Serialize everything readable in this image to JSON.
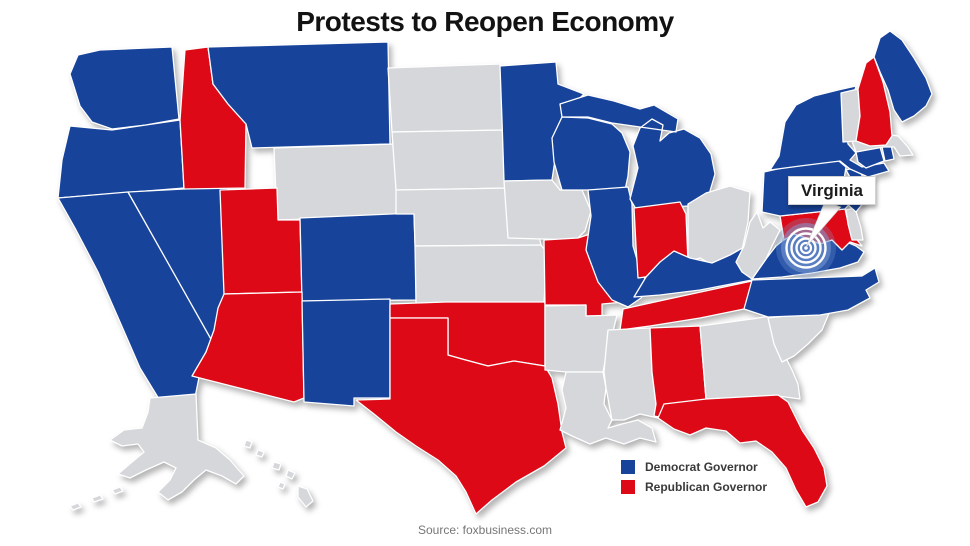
{
  "title": "Protests to Reopen Economy",
  "source": "Source: foxbusiness.com",
  "callout": {
    "label": "Virginia",
    "target_state": "VA"
  },
  "legend": {
    "items": [
      {
        "label": "Democrat Governor",
        "color": "#17439b"
      },
      {
        "label": "Republican Governor",
        "color": "#dd0916"
      }
    ]
  },
  "map": {
    "colors": {
      "democrat": "#17439b",
      "republican": "#dd0916",
      "none": "#d5d7da",
      "state_border": "#ffffff",
      "marker_halo": "#7fa0d8",
      "marker_rings": "#ffffff"
    },
    "states": [
      {
        "abbr": "WA",
        "name": "Washington",
        "governor": "democrat"
      },
      {
        "abbr": "OR",
        "name": "Oregon",
        "governor": "democrat"
      },
      {
        "abbr": "CA",
        "name": "California",
        "governor": "democrat"
      },
      {
        "abbr": "NV",
        "name": "Nevada",
        "governor": "democrat"
      },
      {
        "abbr": "ID",
        "name": "Idaho",
        "governor": "republican"
      },
      {
        "abbr": "MT",
        "name": "Montana",
        "governor": "democrat"
      },
      {
        "abbr": "WY",
        "name": "Wyoming",
        "governor": "none"
      },
      {
        "abbr": "UT",
        "name": "Utah",
        "governor": "republican"
      },
      {
        "abbr": "CO",
        "name": "Colorado",
        "governor": "democrat"
      },
      {
        "abbr": "AZ",
        "name": "Arizona",
        "governor": "republican"
      },
      {
        "abbr": "NM",
        "name": "New Mexico",
        "governor": "democrat"
      },
      {
        "abbr": "ND",
        "name": "North Dakota",
        "governor": "none"
      },
      {
        "abbr": "SD",
        "name": "South Dakota",
        "governor": "none"
      },
      {
        "abbr": "NE",
        "name": "Nebraska",
        "governor": "none"
      },
      {
        "abbr": "KS",
        "name": "Kansas",
        "governor": "none"
      },
      {
        "abbr": "OK",
        "name": "Oklahoma",
        "governor": "republican"
      },
      {
        "abbr": "TX",
        "name": "Texas",
        "governor": "republican"
      },
      {
        "abbr": "MN",
        "name": "Minnesota",
        "governor": "democrat"
      },
      {
        "abbr": "IA",
        "name": "Iowa",
        "governor": "none"
      },
      {
        "abbr": "MO",
        "name": "Missouri",
        "governor": "republican"
      },
      {
        "abbr": "AR",
        "name": "Arkansas",
        "governor": "none"
      },
      {
        "abbr": "LA",
        "name": "Louisiana",
        "governor": "none"
      },
      {
        "abbr": "WI",
        "name": "Wisconsin",
        "governor": "democrat"
      },
      {
        "abbr": "IL",
        "name": "Illinois",
        "governor": "democrat"
      },
      {
        "abbr": "MI",
        "name": "Michigan",
        "governor": "democrat"
      },
      {
        "abbr": "IN",
        "name": "Indiana",
        "governor": "republican"
      },
      {
        "abbr": "OH",
        "name": "Ohio",
        "governor": "none"
      },
      {
        "abbr": "KY",
        "name": "Kentucky",
        "governor": "democrat"
      },
      {
        "abbr": "TN",
        "name": "Tennessee",
        "governor": "republican"
      },
      {
        "abbr": "MS",
        "name": "Mississippi",
        "governor": "none"
      },
      {
        "abbr": "AL",
        "name": "Alabama",
        "governor": "republican"
      },
      {
        "abbr": "GA",
        "name": "Georgia",
        "governor": "none"
      },
      {
        "abbr": "FL",
        "name": "Florida",
        "governor": "republican"
      },
      {
        "abbr": "SC",
        "name": "South Carolina",
        "governor": "none"
      },
      {
        "abbr": "NC",
        "name": "North Carolina",
        "governor": "democrat"
      },
      {
        "abbr": "VA",
        "name": "Virginia",
        "governor": "democrat"
      },
      {
        "abbr": "WV",
        "name": "West Virginia",
        "governor": "none"
      },
      {
        "abbr": "MD",
        "name": "Maryland",
        "governor": "republican"
      },
      {
        "abbr": "DE",
        "name": "Delaware",
        "governor": "none"
      },
      {
        "abbr": "NJ",
        "name": "New Jersey",
        "governor": "democrat"
      },
      {
        "abbr": "PA",
        "name": "Pennsylvania",
        "governor": "democrat"
      },
      {
        "abbr": "NY",
        "name": "New York",
        "governor": "democrat"
      },
      {
        "abbr": "CT",
        "name": "Connecticut",
        "governor": "democrat"
      },
      {
        "abbr": "RI",
        "name": "Rhode Island",
        "governor": "democrat"
      },
      {
        "abbr": "MA",
        "name": "Massachusetts",
        "governor": "none"
      },
      {
        "abbr": "VT",
        "name": "Vermont",
        "governor": "none"
      },
      {
        "abbr": "NH",
        "name": "New Hampshire",
        "governor": "republican"
      },
      {
        "abbr": "ME",
        "name": "Maine",
        "governor": "democrat"
      },
      {
        "abbr": "AK",
        "name": "Alaska",
        "governor": "none"
      },
      {
        "abbr": "HI",
        "name": "Hawaii",
        "governor": "none"
      }
    ]
  }
}
